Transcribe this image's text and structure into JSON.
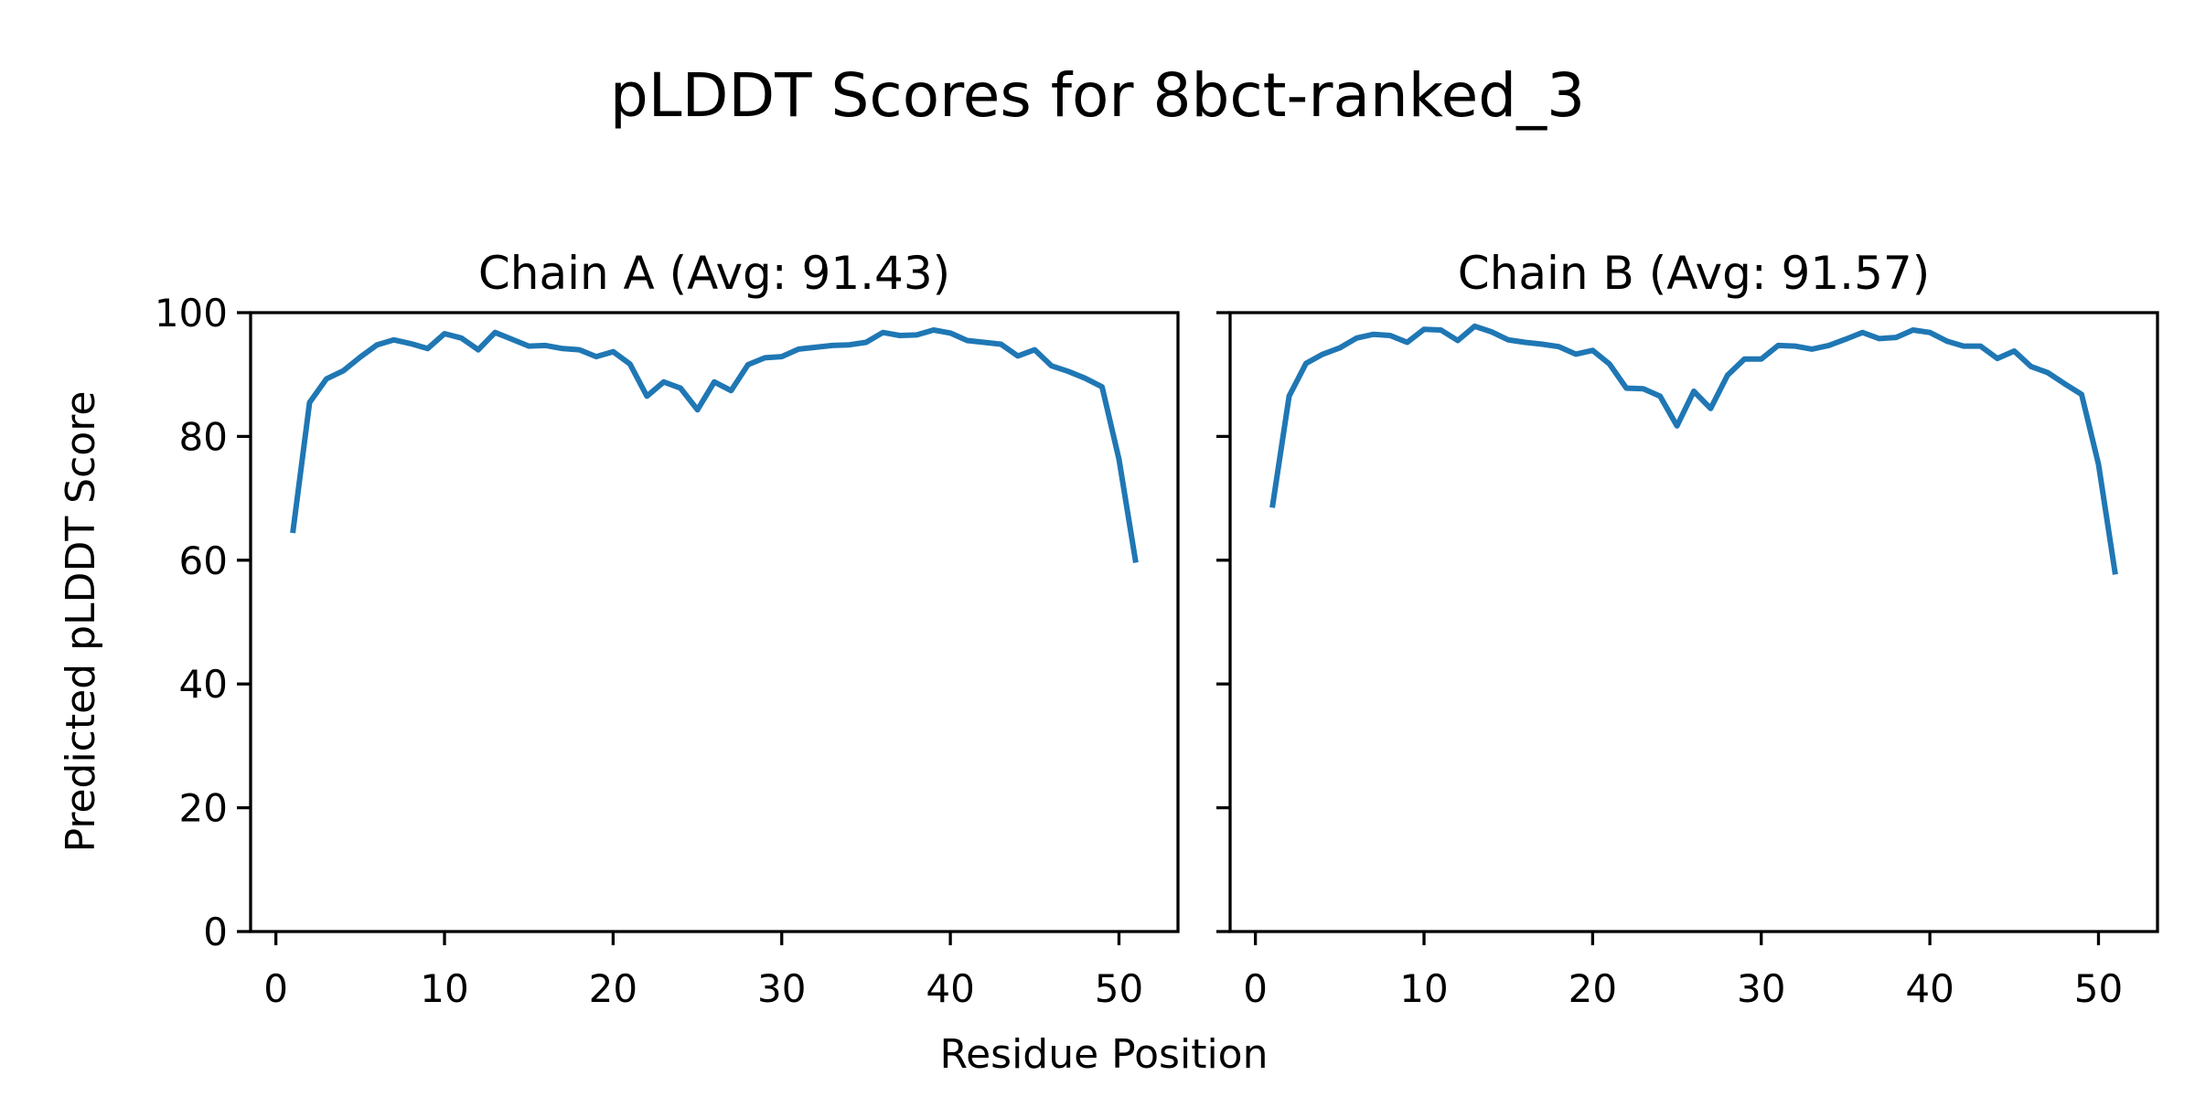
{
  "figure": {
    "title": "pLDDT Scores for 8bct-ranked_3",
    "xlabel": "Residue Position",
    "ylabel": "Predicted pLDDT Score",
    "line_color": "#1f77b4",
    "background": "#ffffff",
    "spine_color": "#000000"
  },
  "chart_data": [
    {
      "type": "line",
      "title": "Chain A (Avg: 91.43)",
      "chain": "A",
      "avg": 91.43,
      "xlim": [
        -1.5,
        53.5
      ],
      "ylim": [
        0,
        100
      ],
      "xticks": [
        0,
        10,
        20,
        30,
        40,
        50
      ],
      "yticks": [
        0,
        20,
        40,
        60,
        80,
        100
      ],
      "show_y_labels": true,
      "grid": false,
      "x": [
        1,
        2,
        3,
        4,
        5,
        6,
        7,
        8,
        9,
        10,
        11,
        12,
        13,
        14,
        15,
        16,
        17,
        18,
        19,
        20,
        21,
        22,
        23,
        24,
        25,
        26,
        27,
        28,
        29,
        30,
        31,
        32,
        33,
        34,
        35,
        36,
        37,
        38,
        39,
        40,
        41,
        42,
        43,
        44,
        45,
        46,
        47,
        48,
        49,
        50,
        51
      ],
      "values": [
        64.4,
        85.5,
        89.3,
        90.6,
        92.8,
        94.8,
        95.6,
        95.0,
        94.2,
        96.6,
        95.9,
        94.0,
        96.8,
        95.7,
        94.6,
        94.7,
        94.2,
        94.0,
        92.9,
        93.7,
        91.7,
        86.5,
        88.8,
        87.8,
        84.3,
        88.8,
        87.4,
        91.6,
        92.7,
        92.9,
        94.1,
        94.4,
        94.7,
        94.8,
        95.2,
        96.8,
        96.3,
        96.4,
        97.2,
        96.7,
        95.5,
        95.2,
        94.9,
        93.0,
        94.0,
        91.4,
        90.5,
        89.4,
        88.0,
        76.3,
        59.6
      ]
    },
    {
      "type": "line",
      "title": "Chain B (Avg: 91.57)",
      "chain": "B",
      "avg": 91.57,
      "xlim": [
        -1.5,
        53.5
      ],
      "ylim": [
        0,
        100
      ],
      "xticks": [
        0,
        10,
        20,
        30,
        40,
        50
      ],
      "yticks": [
        0,
        20,
        40,
        60,
        80,
        100
      ],
      "show_y_labels": false,
      "grid": false,
      "x": [
        1,
        2,
        3,
        4,
        5,
        6,
        7,
        8,
        9,
        10,
        11,
        12,
        13,
        14,
        15,
        16,
        17,
        18,
        19,
        20,
        21,
        22,
        23,
        24,
        25,
        26,
        27,
        28,
        29,
        30,
        31,
        32,
        33,
        34,
        35,
        36,
        37,
        38,
        39,
        40,
        41,
        42,
        43,
        44,
        45,
        46,
        47,
        48,
        49,
        50,
        51
      ],
      "values": [
        68.5,
        86.5,
        91.8,
        93.3,
        94.3,
        95.9,
        96.5,
        96.3,
        95.2,
        97.3,
        97.2,
        95.5,
        97.8,
        96.9,
        95.6,
        95.2,
        94.9,
        94.5,
        93.3,
        93.9,
        91.7,
        87.8,
        87.7,
        86.5,
        81.7,
        87.3,
        84.5,
        89.9,
        92.5,
        92.5,
        94.7,
        94.6,
        94.1,
        94.7,
        95.7,
        96.8,
        95.8,
        96.0,
        97.2,
        96.8,
        95.4,
        94.6,
        94.6,
        92.6,
        93.8,
        91.3,
        90.3,
        88.5,
        86.8,
        75.5,
        57.7
      ]
    }
  ]
}
